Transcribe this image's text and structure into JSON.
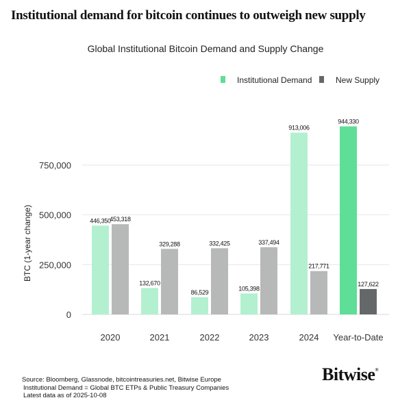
{
  "header": {
    "title": "Institutional demand for bitcoin continues to outweigh new supply"
  },
  "chart_data": {
    "type": "bar",
    "title": "Global Institutional Bitcoin Demand and Supply Change",
    "xlabel": "",
    "ylabel": "BTC (1-year change)",
    "ylim": [
      0,
      1000000
    ],
    "yticks": [
      0,
      250000,
      500000,
      750000
    ],
    "ytick_labels": [
      "0",
      "250,000",
      "500,000",
      "750,000"
    ],
    "grid": true,
    "legend_position": "top-right",
    "categories": [
      "2020",
      "2021",
      "2022",
      "2023",
      "2024",
      "Year-to-Date"
    ],
    "series": [
      {
        "name": "Institutional Demand",
        "color": "#b3f0cf",
        "highlight_color": "#5ede97",
        "values": [
          446350,
          132670,
          86529,
          105398,
          913006,
          944330
        ],
        "labels": [
          "446,350",
          "132,670",
          "86,529",
          "105,398",
          "913,006",
          "944,330"
        ]
      },
      {
        "name": "New Supply",
        "color": "#b7b9b9",
        "highlight_color": "#656869",
        "values": [
          453318,
          329288,
          332425,
          337494,
          217771,
          127622
        ],
        "labels": [
          "453,318",
          "329,288",
          "332,425",
          "337,494",
          "217,771",
          "127,622"
        ]
      }
    ],
    "highlighted_category": "Year-to-Date",
    "legend_colors": [
      "#5ede97",
      "#656869"
    ]
  },
  "footer": {
    "lines": [
      "Source: Bloomberg, Glassnode, bitcointreasuries.net, Bitwise Europe",
      "Institutional Demand = Global BTC ETPs & Public Treasury Companies",
      "Latest data as of 2025-10-08"
    ]
  },
  "logo": {
    "text": "Bitwise",
    "mark": "®"
  }
}
